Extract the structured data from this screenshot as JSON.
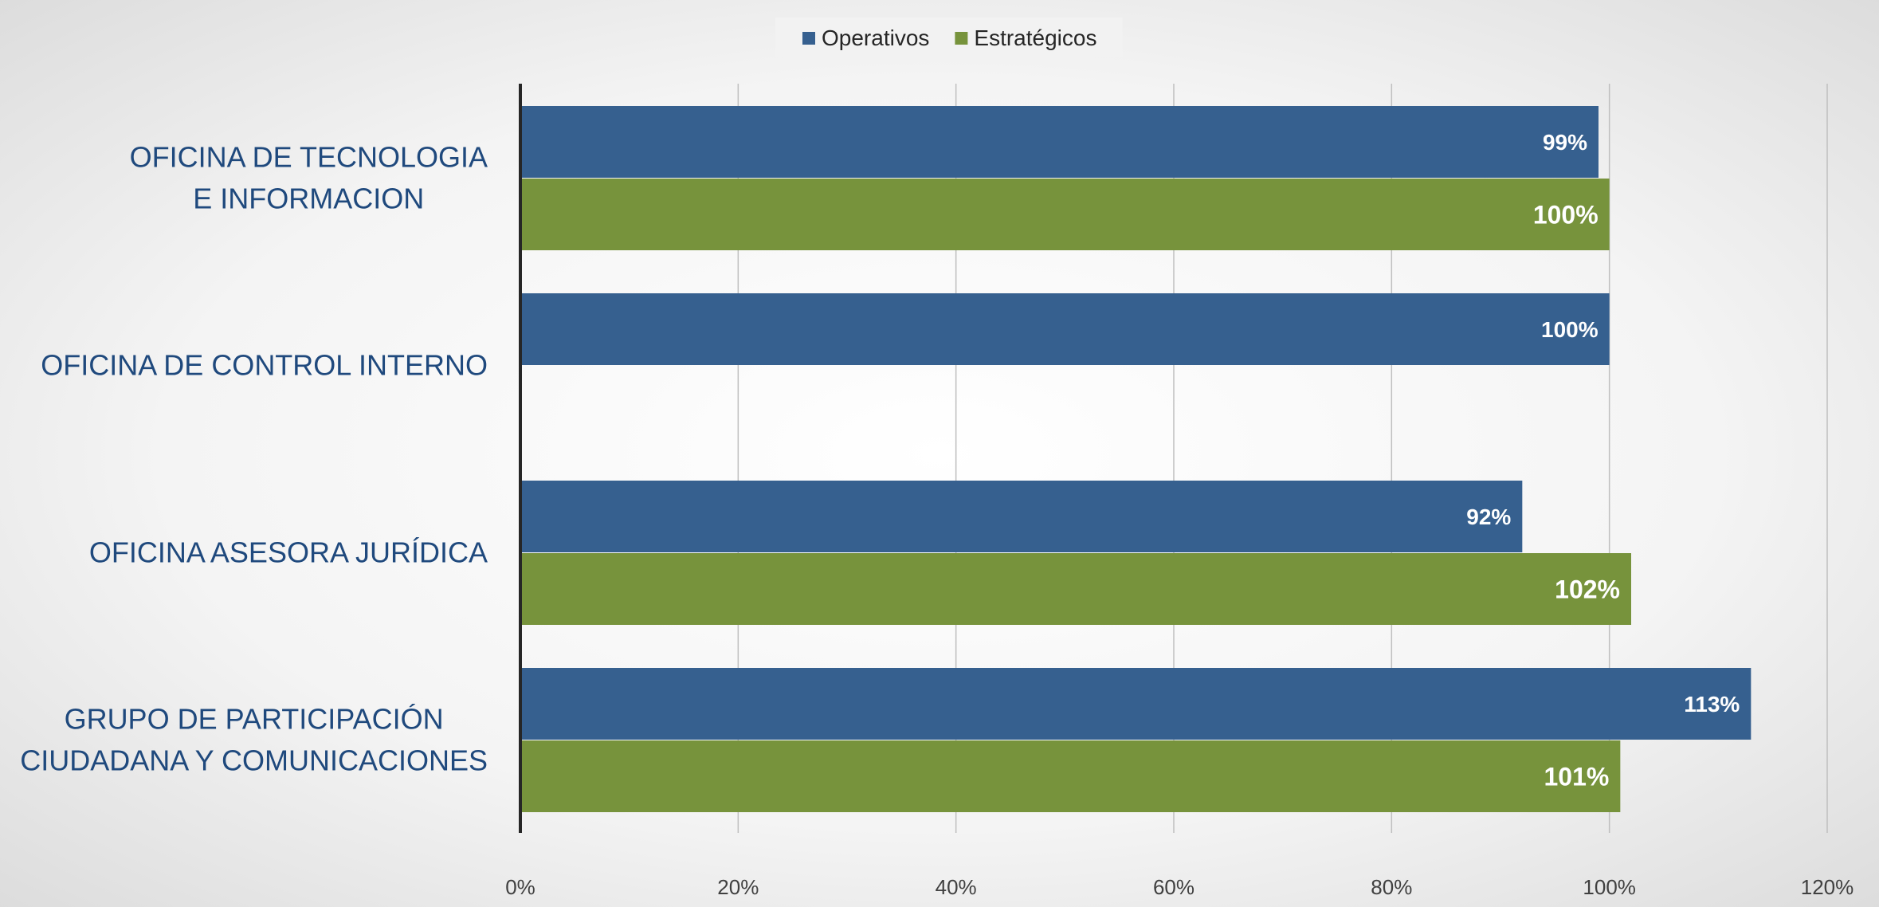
{
  "colors": {
    "operativos": "#36608F",
    "estrategicos": "#77933C",
    "category_text": "#1F497D",
    "tick_text": "#404040",
    "grid": "#BFBFBF",
    "axis": "#262626",
    "label_text": "#FFFFFF"
  },
  "chart_data": {
    "type": "bar",
    "orientation": "horizontal",
    "title": "",
    "xlabel": "",
    "ylabel": "",
    "xlim": [
      0,
      120
    ],
    "x_ticks": [
      "0%",
      "20%",
      "40%",
      "60%",
      "80%",
      "100%",
      "120%"
    ],
    "grid": true,
    "legend_position": "top-center",
    "categories": [
      [
        "OFICINA DE TECNOLOGIA",
        "E INFORMACION"
      ],
      [
        "OFICINA DE CONTROL INTERNO"
      ],
      [
        "OFICINA ASESORA JURÍDICA"
      ],
      [
        "GRUPO DE PARTICIPACIÓN",
        "CIUDADANA Y COMUNICACIONES"
      ]
    ],
    "series": [
      {
        "name": "Operativos",
        "values": [
          99,
          100,
          92,
          113
        ],
        "labels": [
          "99%",
          "100%",
          "92%",
          "113%"
        ]
      },
      {
        "name": "Estratégicos",
        "values": [
          100,
          null,
          102,
          101
        ],
        "labels": [
          "100%",
          "",
          "102%",
          "101%"
        ]
      }
    ]
  }
}
